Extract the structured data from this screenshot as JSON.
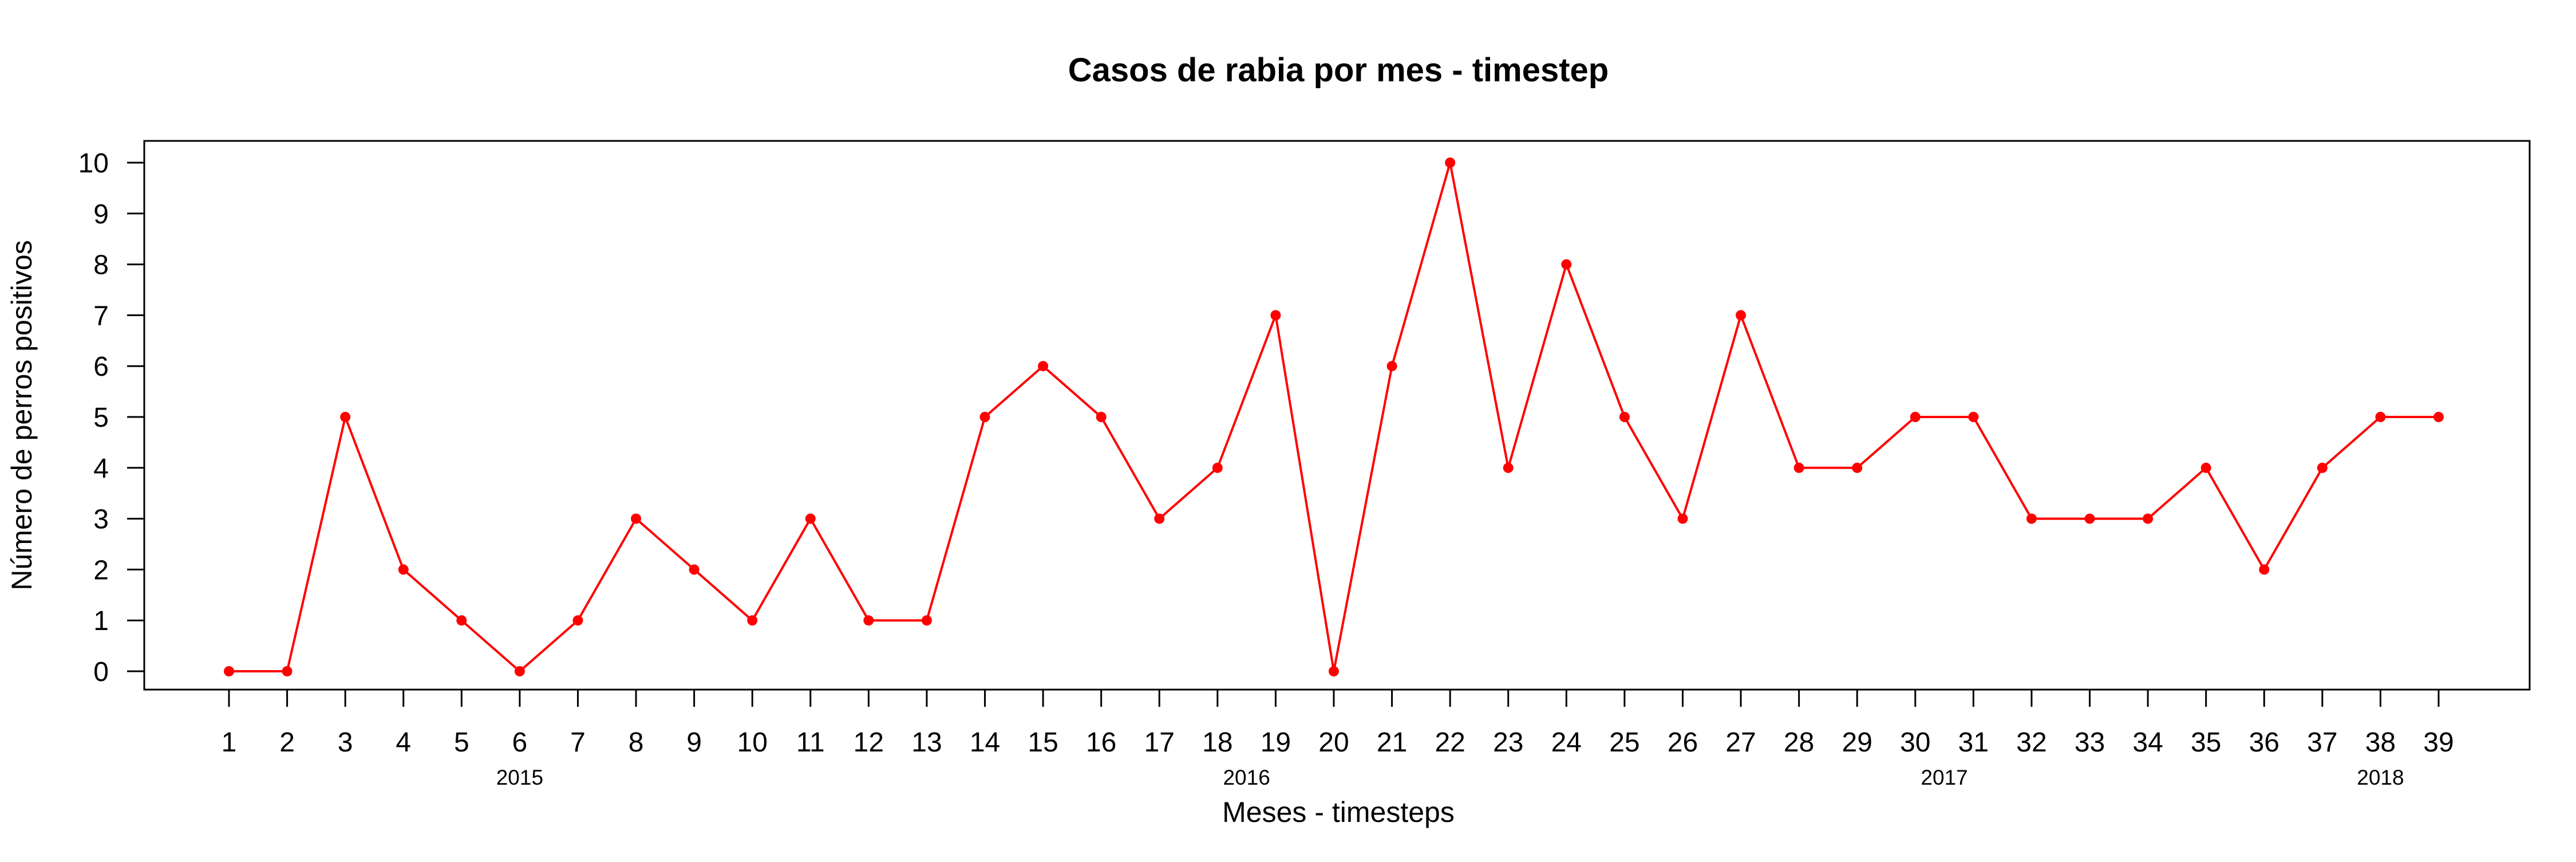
{
  "chart_data": {
    "type": "line",
    "title": "Casos de rabia por mes - timestep",
    "xlabel": "Meses - timesteps",
    "ylabel": "Número de perros positivos",
    "x": [
      1,
      2,
      3,
      4,
      5,
      6,
      7,
      8,
      9,
      10,
      11,
      12,
      13,
      14,
      15,
      16,
      17,
      18,
      19,
      20,
      21,
      22,
      23,
      24,
      25,
      26,
      27,
      28,
      29,
      30,
      31,
      32,
      33,
      34,
      35,
      36,
      37,
      38,
      39
    ],
    "series": [
      {
        "values": [
          0,
          0,
          5,
          2,
          1,
          0,
          1,
          3,
          2,
          1,
          3,
          1,
          1,
          5,
          6,
          5,
          3,
          4,
          7,
          0,
          6,
          10,
          4,
          8,
          5,
          3,
          7,
          4,
          4,
          5,
          5,
          3,
          3,
          3,
          4,
          2,
          4,
          5,
          5
        ]
      }
    ],
    "ylim": [
      0,
      10
    ],
    "yticks": [
      0,
      1,
      2,
      3,
      4,
      5,
      6,
      7,
      8,
      9,
      10
    ],
    "year_labels": [
      {
        "label": "2015",
        "x": 6
      },
      {
        "label": "2016",
        "x": 18.5
      },
      {
        "label": "2017",
        "x": 30.5
      },
      {
        "label": "2018",
        "x": 38
      }
    ],
    "line_color": "#ff0000",
    "marker": "filled-circle",
    "grid": false,
    "legend": "none"
  }
}
